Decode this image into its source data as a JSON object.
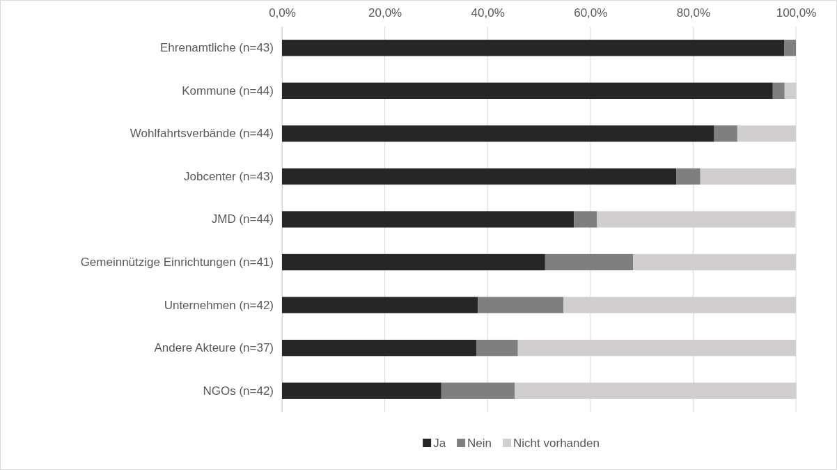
{
  "chart_data": {
    "type": "bar",
    "orientation": "horizontal",
    "stacked": true,
    "categories": [
      "Ehrenamtliche (n=43)",
      "Kommune (n=44)",
      "Wohlfahrtsverbände (n=44)",
      "Jobcenter (n=43)",
      "JMD (n=44)",
      "Gemeinnützige Einrichtungen (n=41)",
      "Unternehmen (n=42)",
      "Andere Akteure (n=37)",
      "NGOs (n=42)"
    ],
    "series": [
      {
        "name": "Ja",
        "color": "#262626",
        "values": [
          97.7,
          95.5,
          84.1,
          76.7,
          56.8,
          51.2,
          38.1,
          37.8,
          31.0
        ]
      },
      {
        "name": "Nein",
        "color": "#7f7f7f",
        "values": [
          2.3,
          2.3,
          4.5,
          4.7,
          4.5,
          17.1,
          16.7,
          8.1,
          14.3
        ]
      },
      {
        "name": "Nicht vorhanden",
        "color": "#d0cece",
        "values": [
          0,
          2.3,
          11.4,
          18.6,
          38.6,
          31.7,
          45.2,
          54.1,
          54.8
        ]
      }
    ],
    "xlim": [
      0,
      100
    ],
    "xticks": [
      {
        "value": 0,
        "label": "0,0%"
      },
      {
        "value": 20,
        "label": "20,0%"
      },
      {
        "value": 40,
        "label": "40,0%"
      },
      {
        "value": 60,
        "label": "60,0%"
      },
      {
        "value": 80,
        "label": "80,0%"
      },
      {
        "value": 100,
        "label": "100,0%"
      }
    ],
    "grid": "x",
    "legend": "bottom"
  }
}
